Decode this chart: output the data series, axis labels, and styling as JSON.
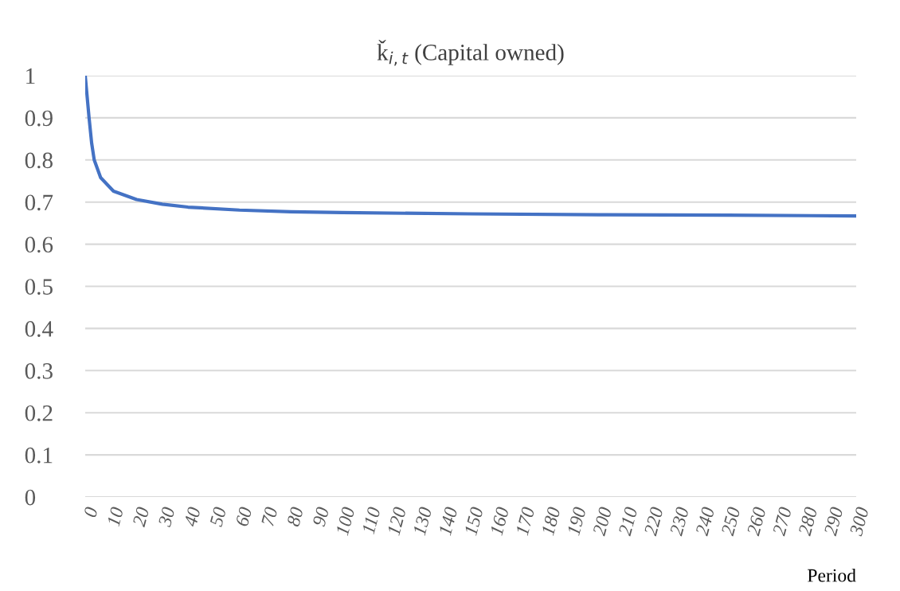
{
  "chart_data": {
    "type": "line",
    "title": "ǩ$_{i,t}$ (Capital owned)",
    "xlabel": "Period",
    "x": [
      0,
      1.5,
      2.5,
      3.5,
      6,
      11,
      20,
      30,
      40,
      60,
      80,
      100,
      150,
      200,
      250,
      300
    ],
    "series": [
      {
        "color": "#4472c4",
        "values": [
          1.0,
          0.9,
          0.84,
          0.8,
          0.758,
          0.726,
          0.706,
          0.695,
          0.688,
          0.681,
          0.677,
          0.675,
          0.672,
          0.67,
          0.669,
          0.667
        ]
      }
    ],
    "xlim": [
      0,
      300
    ],
    "xticks": [
      0,
      10,
      20,
      30,
      40,
      50,
      60,
      70,
      80,
      90,
      100,
      110,
      120,
      130,
      140,
      150,
      160,
      170,
      180,
      190,
      200,
      210,
      220,
      230,
      240,
      250,
      260,
      270,
      280,
      290,
      300
    ],
    "ylim": [
      0,
      1
    ],
    "yticks": [
      0,
      0.1,
      0.2,
      0.3,
      0.4,
      0.5,
      0.6,
      0.7,
      0.8,
      0.9,
      1
    ],
    "grid": "y",
    "legend": false,
    "marker": "none",
    "line_style": "solid"
  }
}
